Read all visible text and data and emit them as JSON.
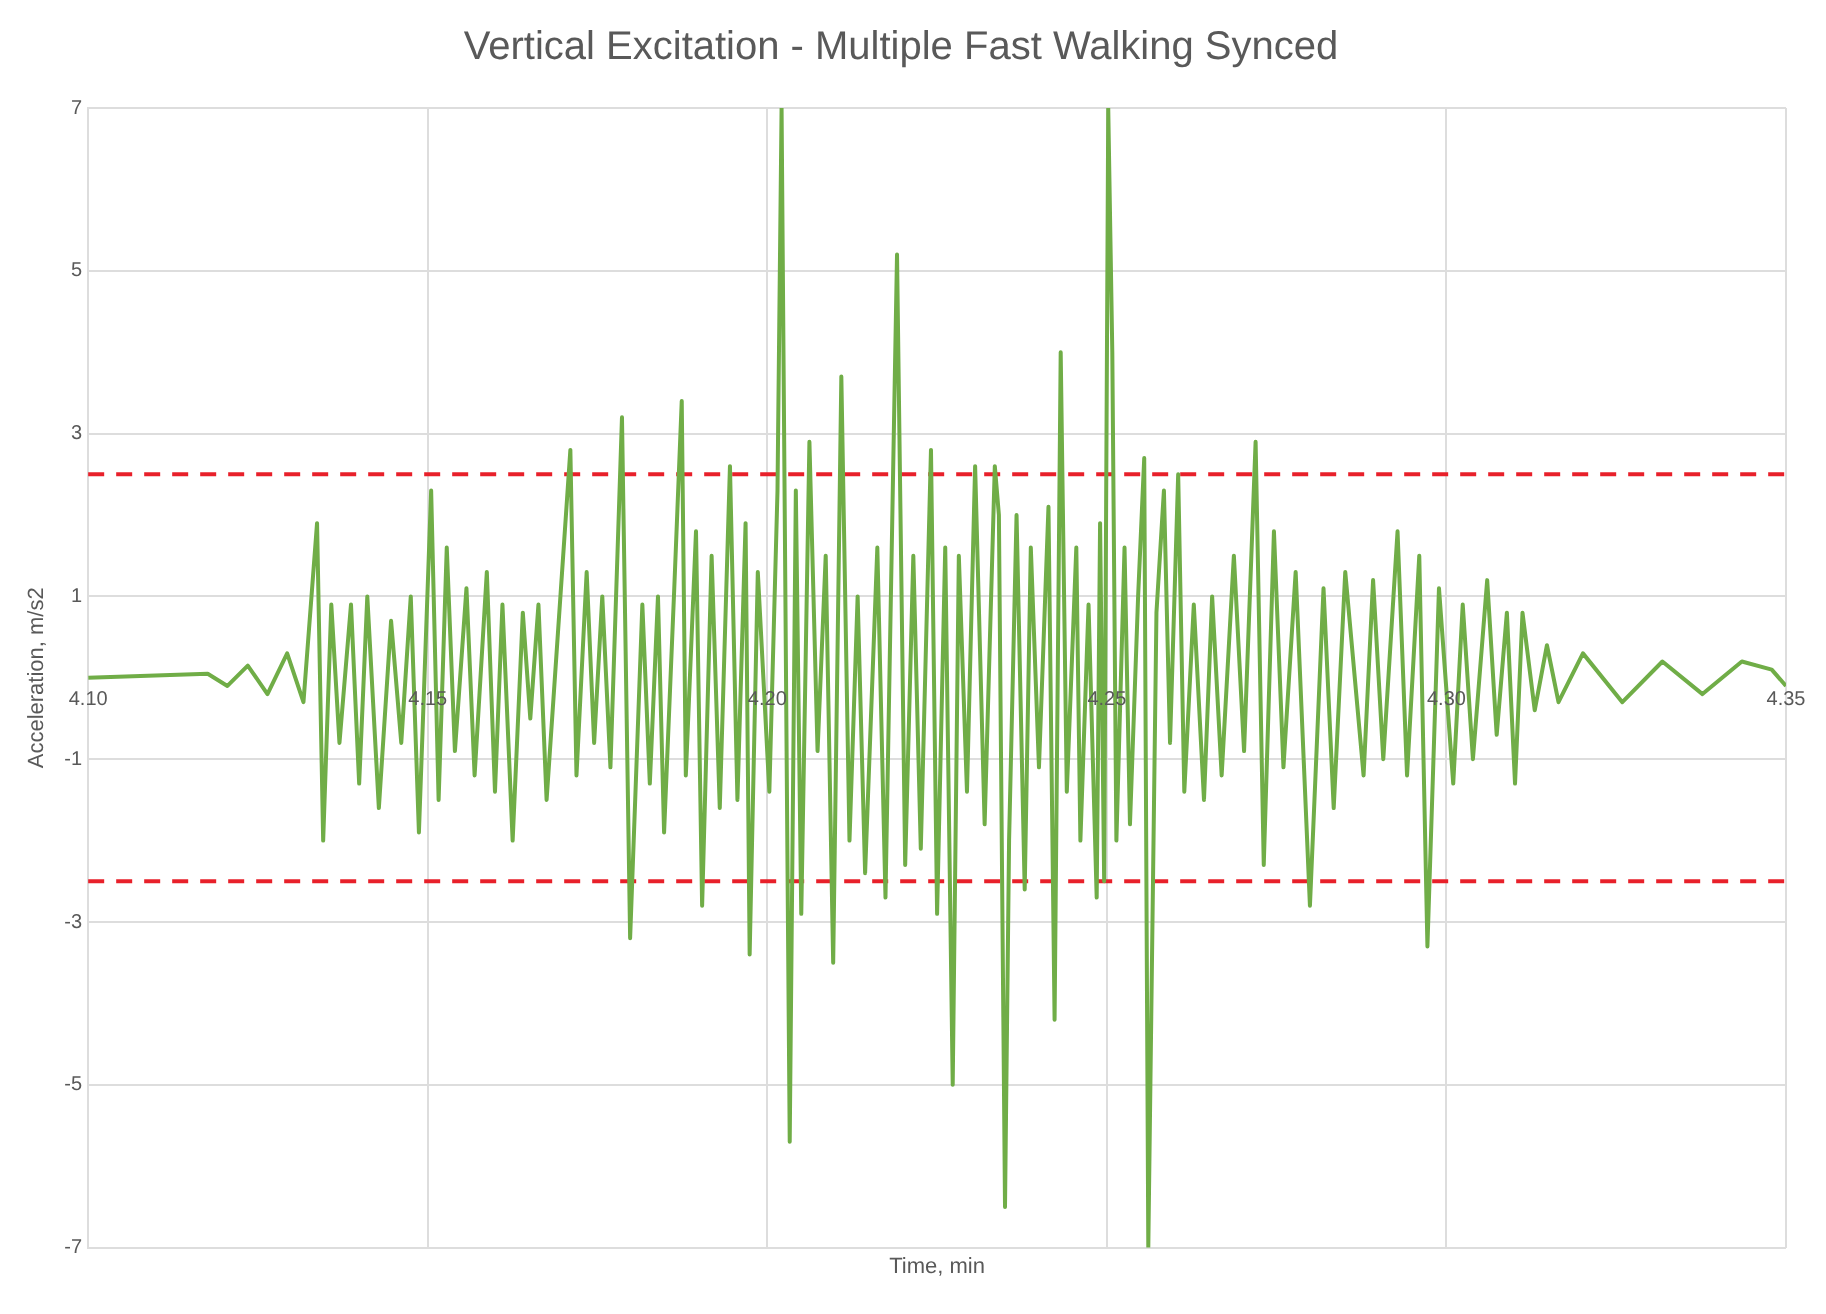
{
  "chart_data": {
    "type": "line",
    "title": "Vertical Excitation - Multiple Fast Walking Synced",
    "xlabel": "Time, min",
    "ylabel": "Acceleration, m/s2",
    "xlim": [
      4.1,
      4.35
    ],
    "xticks": [
      {
        "value": 4.1,
        "label": "4.10"
      },
      {
        "value": 4.15,
        "label": "4.15"
      },
      {
        "value": 4.2,
        "label": "4.20"
      },
      {
        "value": 4.25,
        "label": "4.25"
      },
      {
        "value": 4.3,
        "label": "4.30"
      },
      {
        "value": 4.35,
        "label": "4.35"
      }
    ],
    "ylim": [
      -7,
      7
    ],
    "yticks": [
      -7,
      -5,
      -3,
      -1,
      1,
      3,
      5,
      7
    ],
    "grid": true,
    "legend": false,
    "marker": "none",
    "line_style": "solid",
    "ref_lines": [
      {
        "axis": "y",
        "value": 2.5,
        "color": "#e8202a",
        "line_style": "dashed"
      },
      {
        "axis": "y",
        "value": -2.5,
        "color": "#e8202a",
        "line_style": "dashed"
      }
    ],
    "series": [
      {
        "color": "#70ad47",
        "x": [
          4.1,
          4.1176,
          4.1205,
          4.1235,
          4.1264,
          4.1293,
          4.1317,
          4.1337,
          4.1346,
          4.1358,
          4.137,
          4.1387,
          4.1399,
          4.1411,
          4.1428,
          4.1446,
          4.1461,
          4.1475,
          4.1487,
          4.1505,
          4.1516,
          4.1528,
          4.154,
          4.1557,
          4.1569,
          4.1587,
          4.1599,
          4.161,
          4.1625,
          4.164,
          4.1651,
          4.1663,
          4.1675,
          4.171,
          4.1719,
          4.1734,
          4.1745,
          4.1757,
          4.1769,
          4.1786,
          4.1798,
          4.1816,
          4.1827,
          4.1839,
          4.1848,
          4.1863,
          4.1874,
          4.188,
          4.1895,
          4.1904,
          4.1918,
          4.193,
          4.1945,
          4.1956,
          4.1968,
          4.1974,
          4.1986,
          4.2003,
          4.2015,
          4.2021,
          4.203,
          4.2033,
          4.2042,
          4.205,
          4.2062,
          4.2074,
          4.2086,
          4.2097,
          4.2109,
          4.2121,
          4.2133,
          4.2144,
          4.2162,
          4.2174,
          4.2191,
          4.2203,
          4.2215,
          4.2226,
          4.2241,
          4.225,
          4.2262,
          4.2273,
          4.2282,
          4.2294,
          4.2306,
          4.232,
          4.2335,
          4.2341,
          4.235,
          4.2356,
          4.2367,
          4.2379,
          4.2388,
          4.24,
          4.2414,
          4.2423,
          4.2432,
          4.2441,
          4.2455,
          4.2461,
          4.2473,
          4.2485,
          4.249,
          4.2496,
          4.2502,
          4.2508,
          4.2514,
          4.2526,
          4.2534,
          4.2546,
          4.2555,
          4.2561,
          4.2573,
          4.2584,
          4.2593,
          4.2605,
          4.2614,
          4.2628,
          4.2643,
          4.2655,
          4.2669,
          4.2687,
          4.2702,
          4.2719,
          4.2731,
          4.2746,
          4.276,
          4.2778,
          4.2799,
          4.2819,
          4.2834,
          4.2851,
          4.2878,
          4.2892,
          4.2907,
          4.2928,
          4.2942,
          4.296,
          4.2972,
          4.2989,
          4.301,
          4.3024,
          4.3039,
          4.306,
          4.3074,
          4.3089,
          4.3101,
          4.3112,
          4.313,
          4.3148,
          4.3165,
          4.3201,
          4.3259,
          4.3318,
          4.3377,
          4.3435,
          4.3479,
          4.35
        ],
        "values": [
          0,
          0.05,
          -0.1,
          0.15,
          -0.2,
          0.3,
          -0.3,
          1.9,
          -2.0,
          0.9,
          -0.8,
          0.9,
          -1.3,
          1.0,
          -1.6,
          0.7,
          -0.8,
          1.0,
          -1.9,
          2.3,
          -1.5,
          1.6,
          -0.9,
          1.1,
          -1.2,
          1.3,
          -1.4,
          0.9,
          -2.0,
          0.8,
          -0.5,
          0.9,
          -1.5,
          2.8,
          -1.2,
          1.3,
          -0.8,
          1.0,
          -1.1,
          3.2,
          -3.2,
          0.9,
          -1.3,
          1.0,
          -1.9,
          1.1,
          3.4,
          -1.2,
          1.8,
          -2.8,
          1.5,
          -1.6,
          2.6,
          -1.5,
          1.9,
          -3.4,
          1.3,
          -1.4,
          2.3,
          7,
          -2.6,
          -5.7,
          2.3,
          -2.9,
          2.9,
          -0.9,
          1.5,
          -3.5,
          3.7,
          -2.0,
          1.0,
          -2.4,
          1.6,
          -2.7,
          5.2,
          -2.3,
          1.5,
          -2.1,
          2.8,
          -2.9,
          1.6,
          -5.0,
          1.5,
          -1.4,
          2.6,
          -1.8,
          2.6,
          2.0,
          -6.5,
          -2.0,
          2.0,
          -2.6,
          1.6,
          -1.1,
          2.1,
          -4.2,
          4.0,
          -1.4,
          1.6,
          -2.0,
          0.9,
          -2.7,
          1.9,
          -2.5,
          7,
          4.0,
          -2.0,
          1.6,
          -1.8,
          1.0,
          2.7,
          -7,
          0.8,
          2.3,
          -0.8,
          2.5,
          -1.4,
          0.9,
          -1.5,
          1.0,
          -1.2,
          1.5,
          -0.9,
          2.9,
          -2.3,
          1.8,
          -1.1,
          1.3,
          -2.8,
          1.1,
          -1.6,
          1.3,
          -1.2,
          1.2,
          -1.0,
          1.8,
          -1.2,
          1.5,
          -3.3,
          1.1,
          -1.3,
          0.9,
          -1.0,
          1.2,
          -0.7,
          0.8,
          -1.3,
          0.8,
          -0.4,
          0.4,
          -0.3,
          0.3,
          -0.3,
          0.2,
          -0.2,
          0.2,
          0.1,
          -0.1
        ]
      }
    ]
  }
}
